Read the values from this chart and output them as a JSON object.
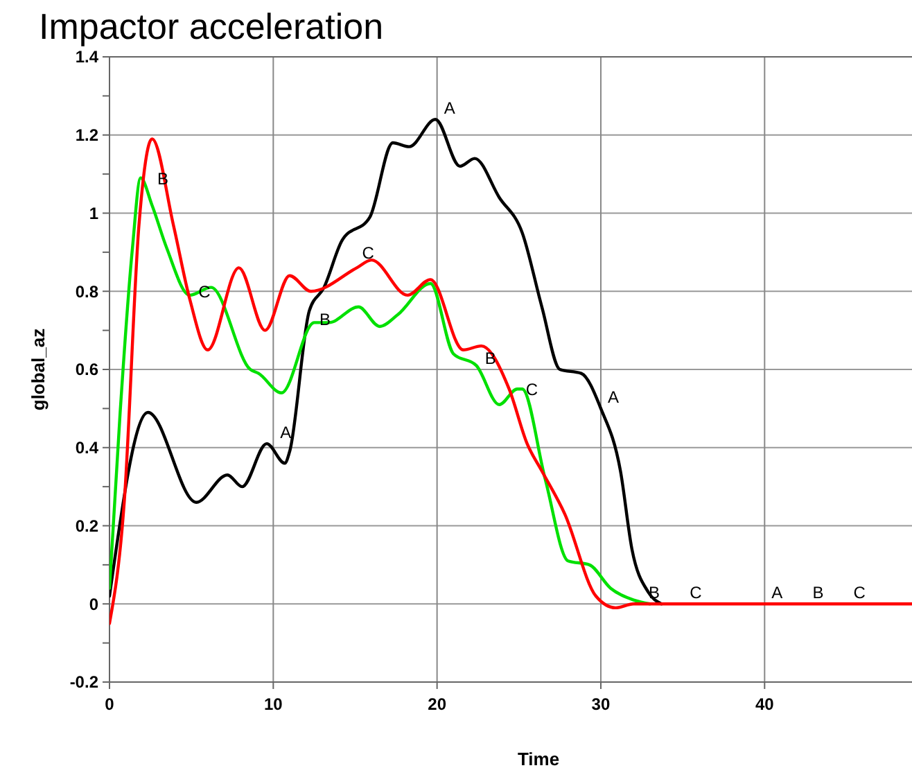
{
  "chart_data": {
    "type": "line",
    "title": "Impactor acceleration",
    "xlabel": "Time",
    "ylabel": "global_az",
    "xlim": [
      0,
      49
    ],
    "xticks": [
      0,
      10,
      20,
      30,
      40
    ],
    "ylim": [
      -0.2,
      1.4
    ],
    "yticks": [
      -0.2,
      {
        "value": -0.1,
        "label": null
      },
      0,
      {
        "value": 0.1,
        "label": null
      },
      0.2,
      {
        "value": 0.3,
        "label": null
      },
      0.4,
      {
        "value": 0.5,
        "label": null
      },
      0.6,
      {
        "value": 0.7,
        "label": null
      },
      0.8,
      {
        "value": 0.9,
        "label": null
      },
      1,
      {
        "value": 1.1,
        "label": null
      },
      1.2,
      {
        "value": 1.3,
        "label": null
      },
      1.4
    ],
    "grid": true,
    "marker": "none",
    "line_style": "solid",
    "series": [
      {
        "color": "#000000",
        "x": [
          0,
          2.35,
          5.3,
          7.2,
          8.1,
          9.6,
          10.7,
          11.0,
          12.2,
          13.1,
          14.2,
          15.9,
          17.3,
          18.3,
          19.9,
          21.4,
          22.3,
          23.8,
          25.2,
          26.4,
          27.5,
          28.8,
          30.0,
          31.2,
          31.9,
          32.9,
          33.7
        ],
        "values": [
          0.02,
          0.49,
          0.26,
          0.33,
          0.3,
          0.41,
          0.36,
          0.39,
          0.75,
          0.81,
          0.93,
          0.99,
          1.18,
          1.17,
          1.24,
          1.12,
          1.14,
          1.04,
          0.95,
          0.76,
          0.6,
          0.59,
          0.5,
          0.34,
          0.14,
          0.03,
          0
        ]
      },
      {
        "color": "#00e000",
        "x": [
          0,
          0.65,
          1.4,
          1.9,
          2.6,
          3.5,
          4.9,
          6.2,
          8.6,
          9.1,
          10.5,
          12.5,
          13.4,
          15.2,
          16.5,
          17.6,
          19.6,
          21.0,
          22.4,
          23.8,
          24.9,
          25.2,
          26.6,
          28.0,
          29.3,
          30.6,
          32.0,
          33.0
        ],
        "values": [
          0.04,
          0.49,
          0.91,
          1.09,
          1.02,
          0.91,
          0.79,
          0.81,
          0.6,
          0.59,
          0.54,
          0.72,
          0.72,
          0.76,
          0.71,
          0.74,
          0.82,
          0.64,
          0.61,
          0.51,
          0.55,
          0.55,
          0.32,
          0.11,
          0.1,
          0.04,
          0.01,
          0
        ]
      },
      {
        "color": "#ff0000",
        "x": [
          0,
          0.9,
          1.8,
          2.6,
          3.9,
          4.9,
          6.0,
          7.9,
          9.5,
          11.0,
          12.3,
          15.1,
          16.0,
          18.2,
          19.6,
          21.6,
          22.7,
          24.4,
          25.5,
          26.4,
          27.8,
          29.7,
          30.9,
          32.0,
          49
        ],
        "values": [
          -0.05,
          0.26,
          0.97,
          1.19,
          0.97,
          0.78,
          0.65,
          0.86,
          0.7,
          0.84,
          0.8,
          0.86,
          0.88,
          0.79,
          0.83,
          0.65,
          0.66,
          0.55,
          0.41,
          0.34,
          0.23,
          0.02,
          -0.01,
          0,
          0
        ]
      }
    ],
    "annotations": [
      {
        "text": "A",
        "x": 20,
        "y": 1.24
      },
      {
        "text": "B",
        "x": 2.5,
        "y": 1.06
      },
      {
        "text": "C",
        "x": 5,
        "y": 0.77
      },
      {
        "text": "A",
        "x": 10,
        "y": 0.41
      },
      {
        "text": "B",
        "x": 12.4,
        "y": 0.7
      },
      {
        "text": "C",
        "x": 15,
        "y": 0.87
      },
      {
        "text": "B",
        "x": 22.5,
        "y": 0.6
      },
      {
        "text": "C",
        "x": 25,
        "y": 0.52
      },
      {
        "text": "A",
        "x": 30,
        "y": 0.5
      },
      {
        "text": "B",
        "x": 32.5,
        "y": 0
      },
      {
        "text": "C",
        "x": 35,
        "y": 0
      },
      {
        "text": "A",
        "x": 40,
        "y": 0
      },
      {
        "text": "B",
        "x": 42.5,
        "y": 0
      },
      {
        "text": "C",
        "x": 45,
        "y": 0
      }
    ]
  }
}
